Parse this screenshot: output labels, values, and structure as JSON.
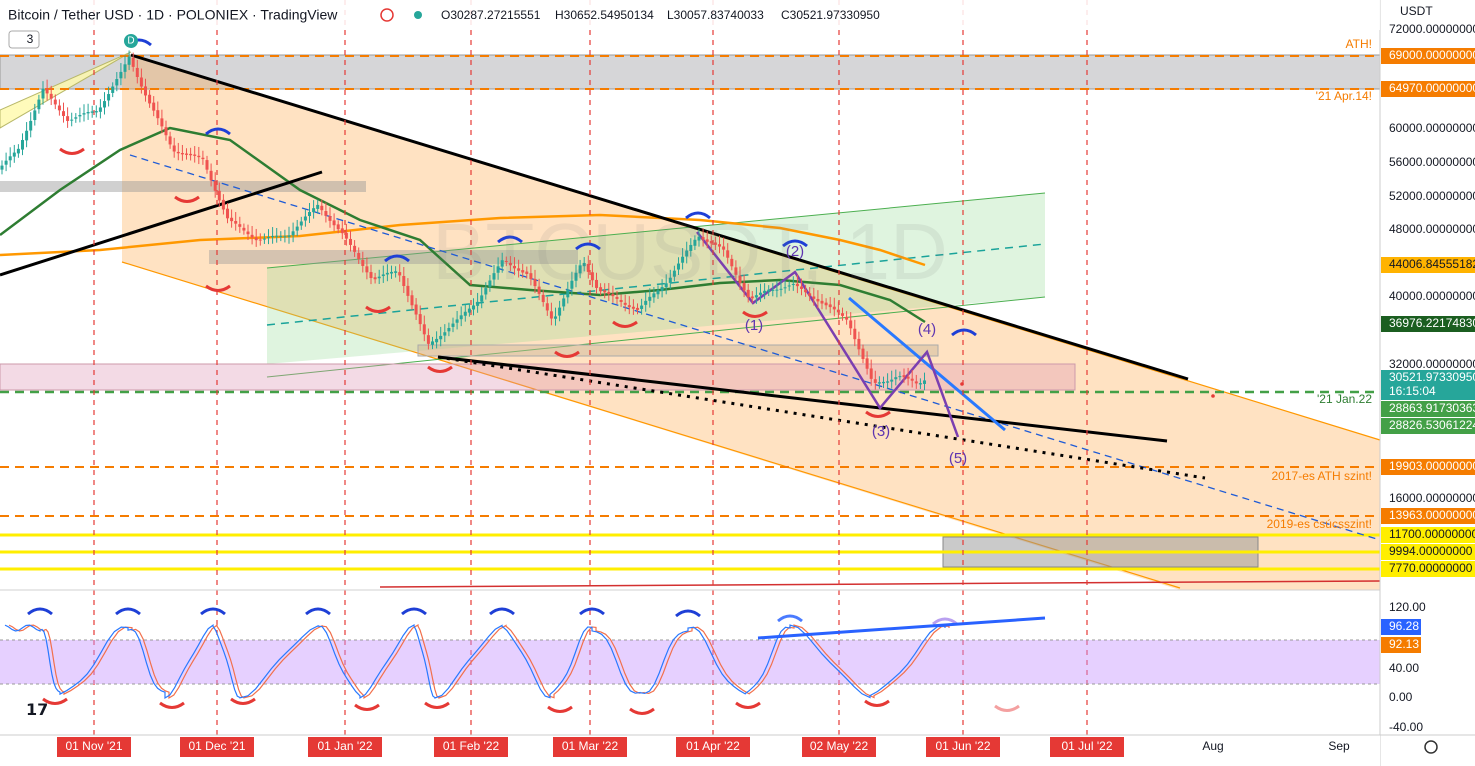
{
  "header": {
    "title": "Bitcoin / Tether USD · 1D · POLONIEX · TradingView",
    "ohlc": [
      "O30287.27215551",
      "H30652.54950134",
      "L30057.83740033",
      "C30521.97330950"
    ]
  },
  "indicator_count": "3",
  "marker": "D",
  "watermark": "BTCUSDT, 1D",
  "price_axis": {
    "unit": "USDT",
    "labels": [
      "72000.00000000",
      "60000.00000000",
      "56000.00000000",
      "52000.00000000",
      "48000.00000000",
      "40000.00000000",
      "32000.00000000",
      "16000.00000000"
    ],
    "badges": [
      "69000.00000000",
      "64970.00000000",
      "44006.84555182",
      "36976.22174830",
      "30521.97330950",
      "28863.91730363",
      "28826.53061224",
      "19903.00000000",
      "13963.00000000",
      "11700.00000000",
      "9994.00000000",
      "7770.00000000"
    ],
    "countdown": "16:15:04"
  },
  "oscillator_axis": {
    "labels": [
      "120.00",
      "40.00",
      "0.00",
      "-40.00"
    ],
    "badges": [
      "96.28",
      "92.13"
    ]
  },
  "date_axis": {
    "labels": [
      "01 Nov '21",
      "01 Dec '21",
      "01 Jan '22",
      "01 Feb '22",
      "01 Mar '22",
      "01 Apr '22",
      "02 May '22",
      "01 Jun '22",
      "01 Jul '22",
      "Aug",
      "Sep"
    ]
  },
  "annotations": [
    "ATH!",
    "'21 Apr.14!",
    "'21 Jan.22",
    "2017-es ATH szint!",
    "2019-es csúcsszint!"
  ],
  "waves": [
    "(1)",
    "(2)",
    "(3)",
    "(4)",
    "(5)"
  ]
}
